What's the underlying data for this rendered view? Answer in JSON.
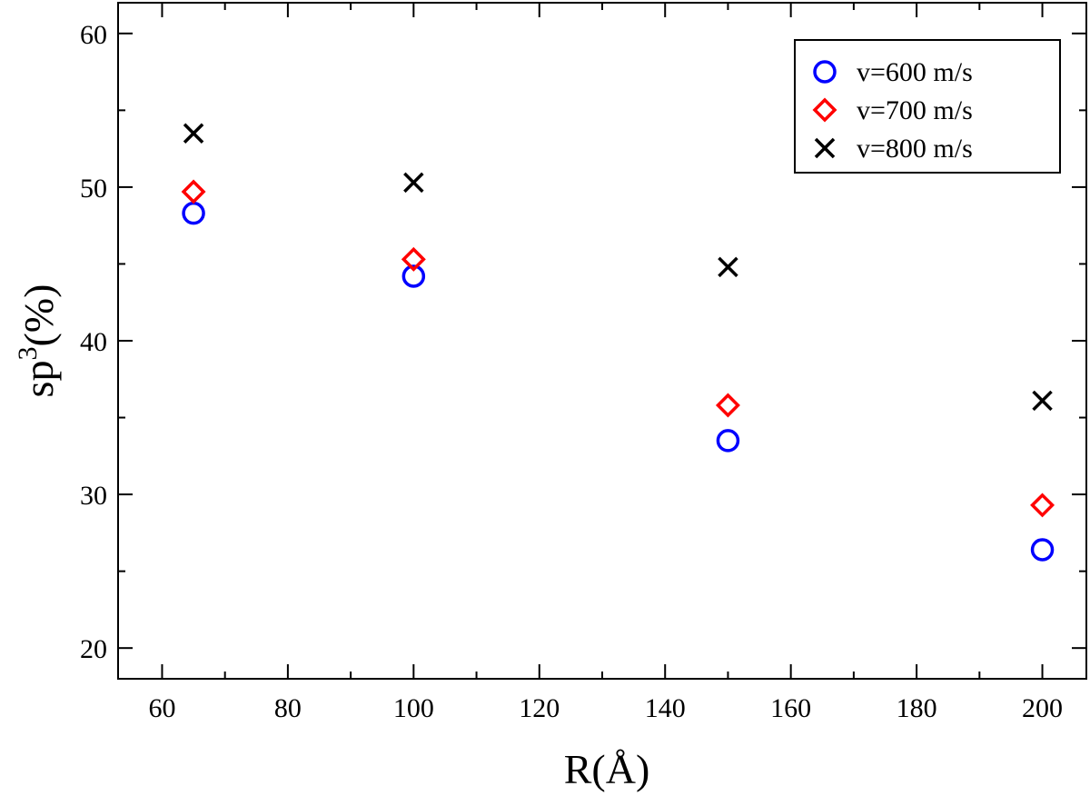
{
  "chart_data": {
    "type": "scatter",
    "title": "",
    "xlabel": "R(Å)",
    "ylabel_base": "sp",
    "ylabel_sup": "3",
    "ylabel_unit": "(%)",
    "xlim": [
      53,
      207
    ],
    "ylim": [
      18,
      62
    ],
    "xticks": [
      60,
      80,
      100,
      120,
      140,
      160,
      180,
      200
    ],
    "yticks": [
      20,
      30,
      40,
      50,
      60
    ],
    "legend_position": "top-right",
    "series": [
      {
        "name": "v=600 m/s",
        "marker": "circle-open",
        "color": "#0000ff",
        "x": [
          65,
          100,
          150,
          200
        ],
        "y": [
          48.3,
          44.2,
          33.5,
          26.4
        ]
      },
      {
        "name": "v=700 m/s",
        "marker": "diamond-open",
        "color": "#ff0000",
        "x": [
          65,
          100,
          150,
          200
        ],
        "y": [
          49.7,
          45.3,
          35.8,
          29.3
        ]
      },
      {
        "name": "v=800 m/s",
        "marker": "x",
        "color": "#000000",
        "x": [
          65,
          100,
          150,
          200
        ],
        "y": [
          53.5,
          50.3,
          44.8,
          36.1
        ]
      }
    ]
  }
}
